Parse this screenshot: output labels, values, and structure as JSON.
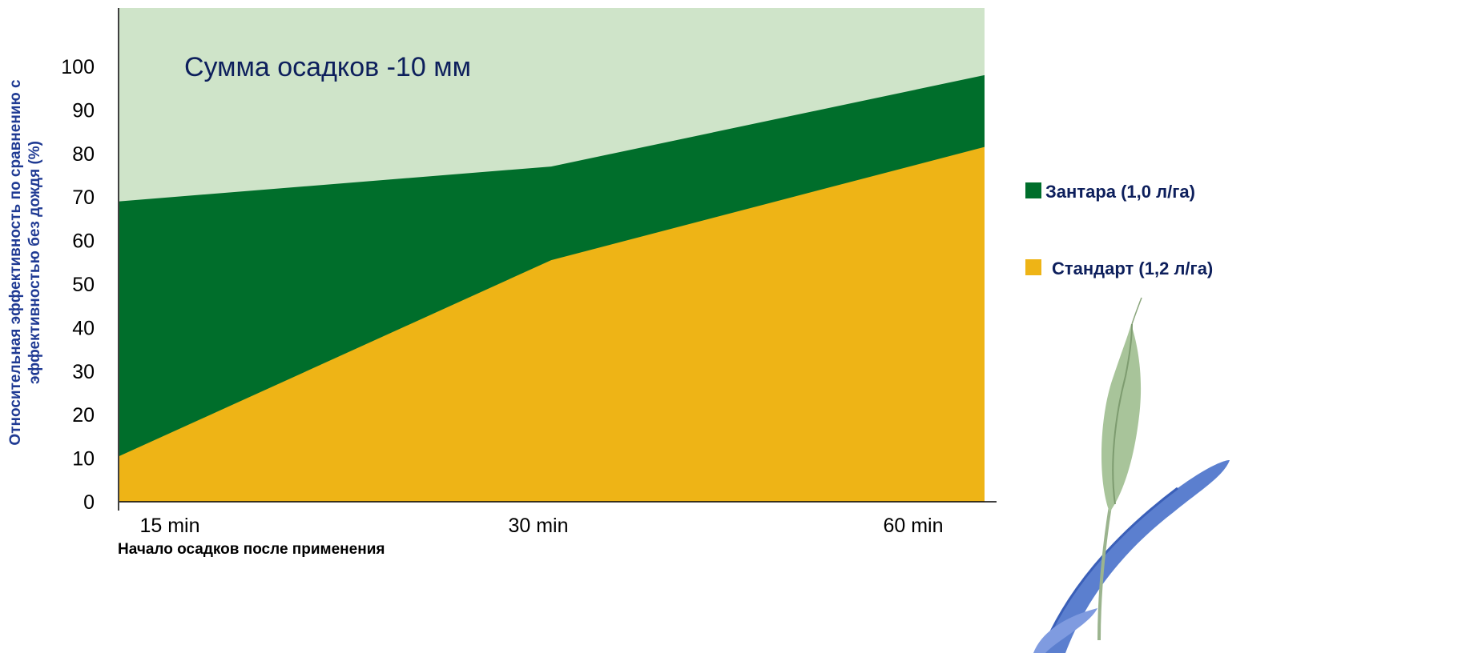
{
  "chart_data": {
    "type": "area",
    "annotation": "Сумма осадков -10 мм",
    "xlabel": "Начало осадков после применения",
    "ylabel_lines": [
      "Относительная эффективность по сравнению с",
      "эффективностью без дождя (%)"
    ],
    "categories": [
      "15 min",
      "30 min",
      "60 min"
    ],
    "yticks": [
      "0",
      "10",
      "20",
      "30",
      "40",
      "50",
      "60",
      "70",
      "80",
      "90",
      "100"
    ],
    "ylim": [
      0,
      110
    ],
    "grid": false,
    "legend_position": "right",
    "series": [
      {
        "name": "Зантара  (1,0 л/га)",
        "values": [
          69,
          77,
          98
        ],
        "color": "#006e2b"
      },
      {
        "name": "Стандарт (1,2 л/га)",
        "values": [
          10.5,
          55.5,
          81.5
        ],
        "color": "#eeb416"
      }
    ],
    "background_color": "#cfe4c9"
  }
}
